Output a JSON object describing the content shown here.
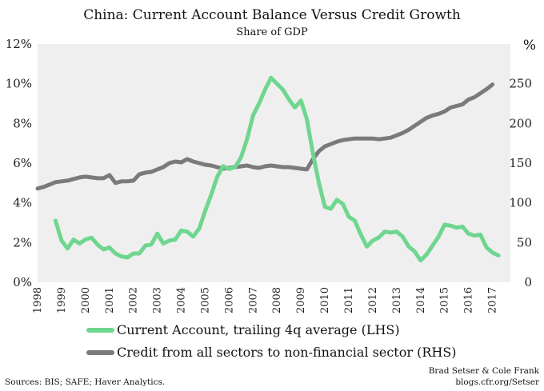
{
  "chart_data": {
    "type": "line",
    "title": "China: Current Account  Balance Versus Credit Growth",
    "subtitle": "Share of GDP",
    "left_axis": {
      "ticks": [
        "0%",
        "2%",
        "4%",
        "6%",
        "8%",
        "10%",
        "12%"
      ],
      "ylim": [
        0,
        12
      ]
    },
    "right_axis": {
      "unit_label": "%",
      "ticks": [
        "0",
        "50",
        "100",
        "150",
        "200",
        "250"
      ],
      "ylim": [
        0,
        300
      ]
    },
    "x_axis": {
      "ticks": [
        "1998",
        "1999",
        "2000",
        "2001",
        "2002",
        "2003",
        "2004",
        "2005",
        "2006",
        "2007",
        "2008",
        "2009",
        "2010",
        "2011",
        "2012",
        "2013",
        "2014",
        "2015",
        "2016",
        "2017"
      ],
      "xlim": [
        1998.0,
        2017.75
      ]
    },
    "grid": false,
    "background": "#efefef",
    "series": [
      {
        "name": "Current Account, trailing 4q average (LHS)",
        "axis": "left",
        "color": "#6fd68f",
        "x": [
          1998.75,
          1999.0,
          1999.25,
          1999.5,
          1999.75,
          2000.0,
          2000.25,
          2000.5,
          2000.75,
          2001.0,
          2001.25,
          2001.5,
          2001.75,
          2002.0,
          2002.25,
          2002.5,
          2002.75,
          2003.0,
          2003.25,
          2003.5,
          2003.75,
          2004.0,
          2004.25,
          2004.5,
          2004.75,
          2005.0,
          2005.25,
          2005.5,
          2005.75,
          2006.0,
          2006.25,
          2006.5,
          2006.75,
          2007.0,
          2007.25,
          2007.5,
          2007.75,
          2008.0,
          2008.25,
          2008.5,
          2008.75,
          2009.0,
          2009.25,
          2009.5,
          2009.75,
          2010.0,
          2010.25,
          2010.5,
          2010.75,
          2011.0,
          2011.25,
          2011.5,
          2011.75,
          2012.0,
          2012.25,
          2012.5,
          2012.75,
          2013.0,
          2013.25,
          2013.5,
          2013.75,
          2014.0,
          2014.25,
          2014.5,
          2014.75,
          2015.0,
          2015.25,
          2015.5,
          2015.75,
          2016.0,
          2016.25,
          2016.5,
          2016.75,
          2017.0,
          2017.25
        ],
        "values": [
          3.1,
          2.1,
          1.7,
          2.15,
          1.95,
          2.15,
          2.25,
          1.9,
          1.65,
          1.75,
          1.45,
          1.3,
          1.25,
          1.45,
          1.45,
          1.85,
          1.9,
          2.45,
          1.95,
          2.1,
          2.15,
          2.6,
          2.55,
          2.3,
          2.7,
          3.6,
          4.4,
          5.3,
          5.85,
          5.7,
          5.8,
          6.3,
          7.2,
          8.4,
          9.0,
          9.7,
          10.3,
          10.0,
          9.7,
          9.2,
          8.8,
          9.15,
          8.2,
          6.5,
          5.0,
          3.8,
          3.7,
          4.15,
          3.95,
          3.3,
          3.1,
          2.4,
          1.8,
          2.1,
          2.25,
          2.55,
          2.5,
          2.55,
          2.3,
          1.8,
          1.55,
          1.1,
          1.4,
          1.85,
          2.3,
          2.9,
          2.85,
          2.75,
          2.8,
          2.45,
          2.35,
          2.4,
          1.75,
          1.5,
          1.35
        ]
      },
      {
        "name": "Credit from all sectors to non-financial sector (RHS)",
        "axis": "right",
        "color": "#7a7a7a",
        "x": [
          1998.0,
          1998.25,
          1998.5,
          1998.75,
          1999.0,
          1999.25,
          1999.5,
          1999.75,
          2000.0,
          2000.25,
          2000.5,
          2000.75,
          2001.0,
          2001.25,
          2001.5,
          2001.75,
          2002.0,
          2002.25,
          2002.5,
          2002.75,
          2003.0,
          2003.25,
          2003.5,
          2003.75,
          2004.0,
          2004.25,
          2004.5,
          2004.75,
          2005.0,
          2005.25,
          2005.5,
          2005.75,
          2006.0,
          2006.25,
          2006.5,
          2006.75,
          2007.0,
          2007.25,
          2007.5,
          2007.75,
          2008.0,
          2008.25,
          2008.5,
          2008.75,
          2009.0,
          2009.25,
          2009.5,
          2009.75,
          2010.0,
          2010.25,
          2010.5,
          2010.75,
          2011.0,
          2011.25,
          2011.5,
          2011.75,
          2012.0,
          2012.25,
          2012.5,
          2012.75,
          2013.0,
          2013.25,
          2013.5,
          2013.75,
          2014.0,
          2014.25,
          2014.5,
          2014.75,
          2015.0,
          2015.25,
          2015.5,
          2015.75,
          2016.0,
          2016.25,
          2016.5,
          2016.75,
          2017.0
        ],
        "values": [
          118,
          120,
          123,
          126,
          127,
          128,
          130,
          132,
          133,
          132,
          131,
          131,
          135,
          125,
          127,
          127,
          128,
          136,
          138,
          139,
          142,
          145,
          150,
          152,
          151,
          155,
          152,
          150,
          148,
          147,
          145,
          143,
          144,
          145,
          146,
          147,
          145,
          144,
          146,
          147,
          146,
          145,
          145,
          144,
          143,
          142,
          155,
          165,
          171,
          174,
          177,
          179,
          180,
          181,
          181,
          181,
          181,
          180,
          181,
          182,
          185,
          188,
          192,
          197,
          202,
          207,
          210,
          212,
          215,
          220,
          222,
          224,
          230,
          233,
          238,
          243,
          249
        ]
      }
    ],
    "source": "Sources: BIS; SAFE; Haver Analytics.",
    "credit": [
      "Brad Setser & Cole Frank",
      "blogs.cfr.org/Setser"
    ]
  }
}
